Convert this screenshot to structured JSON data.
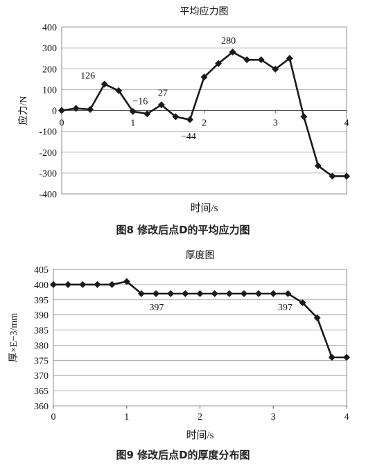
{
  "captions": {
    "fig8": "图8 修改后点D的平均应力图",
    "fig9": "图9 修改后点D的厚度分布图"
  },
  "chart_data": [
    {
      "type": "line",
      "title": "平均应力图",
      "xlabel": "时间/s",
      "ylabel": "应力/N",
      "xlim": [
        0,
        4
      ],
      "ylim": [
        -400,
        400
      ],
      "x_ticks": [
        0,
        1,
        2,
        3,
        4
      ],
      "y_ticks": [
        -400,
        -300,
        -200,
        -100,
        0,
        100,
        200,
        300,
        400
      ],
      "grid": "horizontal",
      "x_tick_labels_on_zero_line": true,
      "series": [
        {
          "x": [
            0,
            0.2,
            0.4,
            0.6,
            0.8,
            1.0,
            1.2,
            1.4,
            1.6,
            1.8,
            2.0,
            2.2,
            2.4,
            2.6,
            2.8,
            3.0,
            3.2,
            3.4,
            3.6,
            3.8,
            4.0
          ],
          "y": [
            0,
            10,
            5,
            126,
            95,
            -5,
            -16,
            27,
            -30,
            -44,
            160,
            225,
            280,
            243,
            243,
            198,
            250,
            -30,
            -265,
            -315,
            -315
          ],
          "marker": "diamond",
          "color": "#1a1a1a"
        }
      ],
      "annotations": [
        {
          "x": 0.6,
          "y": 126,
          "text": "126"
        },
        {
          "x": 1.2,
          "y": -16,
          "text": "−16"
        },
        {
          "x": 1.4,
          "y": 27,
          "text": "27"
        },
        {
          "x": 1.8,
          "y": -44,
          "text": "−44"
        },
        {
          "x": 2.4,
          "y": 280,
          "text": "280"
        }
      ]
    },
    {
      "type": "line",
      "title": "厚度图",
      "xlabel": "时间/s",
      "ylabel": "厚×E−3/mm",
      "xlim": [
        0,
        4
      ],
      "ylim": [
        360,
        405
      ],
      "x_ticks": [
        0,
        1,
        2,
        3,
        4
      ],
      "y_ticks": [
        360,
        365,
        370,
        375,
        380,
        385,
        390,
        395,
        400,
        405
      ],
      "grid": "horizontal",
      "series": [
        {
          "x": [
            0,
            0.2,
            0.4,
            0.6,
            0.8,
            1.0,
            1.2,
            1.4,
            1.6,
            1.8,
            2.0,
            2.2,
            2.4,
            2.6,
            2.8,
            3.0,
            3.2,
            3.4,
            3.6,
            3.8,
            4.0
          ],
          "y": [
            400,
            400,
            400,
            400,
            400,
            401,
            397,
            397,
            397,
            397,
            397,
            397,
            397,
            397,
            397,
            397,
            397,
            394,
            389,
            376,
            376
          ],
          "marker": "diamond",
          "color": "#1a1a1a"
        }
      ],
      "annotations": [
        {
          "x": 1.2,
          "y": 397,
          "text": "397"
        },
        {
          "x": 3.2,
          "y": 397,
          "text": "397"
        }
      ]
    }
  ]
}
